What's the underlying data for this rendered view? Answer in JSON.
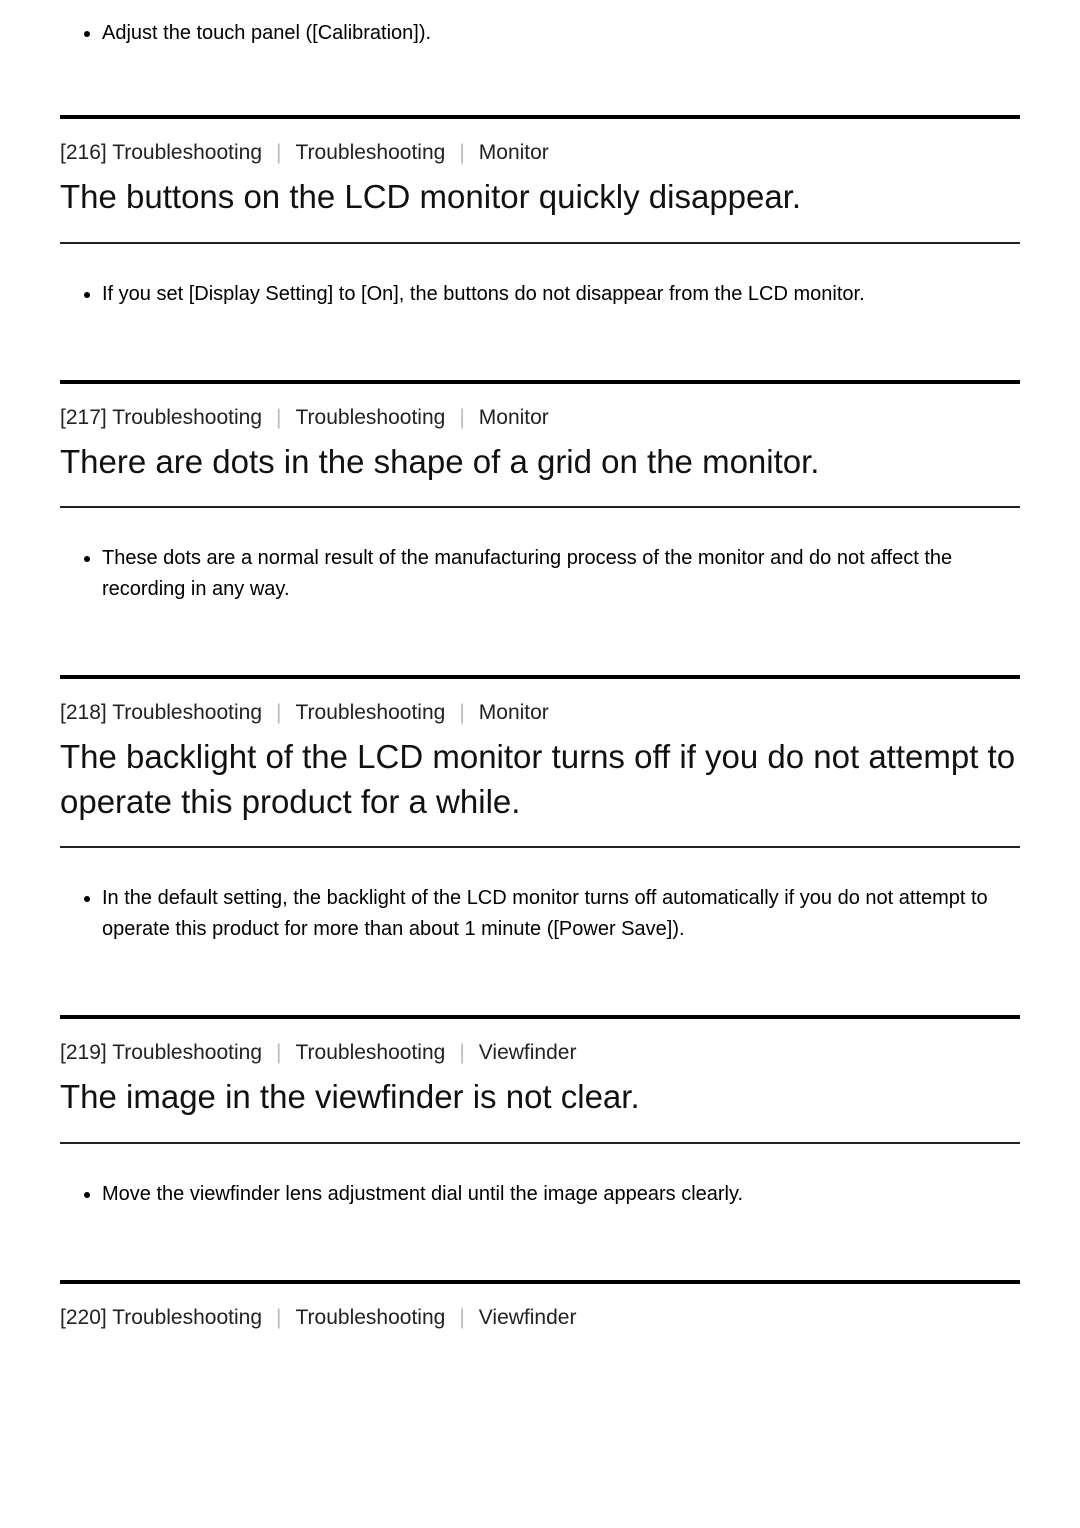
{
  "intro_bullet": "Adjust the touch panel ([Calibration]).",
  "sections": [
    {
      "id": "216",
      "crumb1": "Troubleshooting",
      "crumb2": "Troubleshooting",
      "crumb3": "Monitor",
      "title": "The buttons on the LCD monitor quickly disappear.",
      "bullet": "If you set [Display Setting] to [On], the buttons do not disappear from the LCD monitor."
    },
    {
      "id": "217",
      "crumb1": "Troubleshooting",
      "crumb2": "Troubleshooting",
      "crumb3": "Monitor",
      "title": "There are dots in the shape of a grid on the monitor.",
      "bullet": "These dots are a normal result of the manufacturing process of the monitor and do not affect the recording in any way."
    },
    {
      "id": "218",
      "crumb1": "Troubleshooting",
      "crumb2": "Troubleshooting",
      "crumb3": "Monitor",
      "title": "The backlight of the LCD monitor turns off if you do not attempt to operate this product for a while.",
      "bullet": "In the default setting, the backlight of the LCD monitor turns off automatically if you do not attempt to operate this product for more than about 1 minute ([Power Save])."
    },
    {
      "id": "219",
      "crumb1": "Troubleshooting",
      "crumb2": "Troubleshooting",
      "crumb3": "Viewfinder",
      "title": "The image in the viewfinder is not clear.",
      "bullet": "Move the viewfinder lens adjustment dial until the image appears clearly."
    },
    {
      "id": "220",
      "crumb1": "Troubleshooting",
      "crumb2": "Troubleshooting",
      "crumb3": "Viewfinder"
    }
  ],
  "colors": {
    "text": "#000000",
    "bg": "#ffffff",
    "rule_thick": "#000000",
    "rule_thin": "#222222",
    "sep": "#bbbbbb"
  },
  "typography": {
    "body_font_size": 20,
    "title_font_size": 33,
    "breadcrumb_font_size": 21
  }
}
